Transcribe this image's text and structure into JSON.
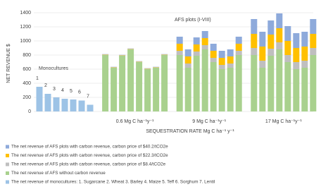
{
  "chart_data": {
    "type": "bar",
    "stacked": true,
    "y_label": "NET REVENUE $",
    "x_label": "SEQUESTRATION RATE Mg C ha⁻¹ y⁻¹",
    "annotations": [
      "Monocultures",
      "AFS plots (I-VIII)"
    ],
    "group_labels": [
      "0.6 Mg C ha⁻¹y⁻¹",
      "9 Mg C ha⁻¹y⁻¹",
      "17 Mg C ha⁻¹y⁻¹"
    ],
    "categories": [
      "1",
      "2",
      "3",
      "4",
      "5",
      "6",
      "7",
      null,
      null,
      null,
      null,
      null,
      null,
      null,
      null,
      null,
      null,
      null,
      null,
      null,
      null,
      null,
      null,
      null,
      null,
      null,
      null,
      null,
      null,
      null,
      null
    ],
    "ylim": [
      0,
      1400
    ],
    "yticks": [
      0,
      200,
      400,
      600,
      800,
      1000,
      1200,
      1400
    ],
    "grid": true,
    "series": [
      {
        "name": "The net revenue of AFS plots with carbon revenue, carbon price of $40.2/tCO2e",
        "color": "#8eaadb",
        "values": [
          null,
          null,
          null,
          null,
          null,
          null,
          null,
          5,
          5,
          5,
          5,
          5,
          5,
          5,
          5,
          100,
          100,
          100,
          100,
          100,
          100,
          100,
          100,
          210,
          210,
          200,
          210,
          210,
          210,
          210,
          210
        ]
      },
      {
        "name": "The net revenue of AFS plots with carbon revenue, carbon price of $22.3/tCO2e",
        "color": "#ffc000",
        "values": [
          null,
          null,
          null,
          null,
          null,
          null,
          null,
          5,
          5,
          5,
          5,
          5,
          5,
          5,
          5,
          100,
          100,
          100,
          100,
          100,
          100,
          100,
          100,
          200,
          200,
          200,
          200,
          200,
          200,
          200,
          200
        ]
      },
      {
        "name": "The net revenue of AFS plots with carbon revenue, carbon price of $8.4/tCO2e",
        "color": "#bfbfbf",
        "values": [
          null,
          null,
          null,
          null,
          null,
          null,
          null,
          3,
          3,
          3,
          3,
          3,
          3,
          3,
          3,
          60,
          60,
          60,
          60,
          60,
          60,
          60,
          60,
          100,
          100,
          100,
          100,
          100,
          100,
          100,
          100
        ]
      },
      {
        "name": "The net revenue of AFS without carbon revenue",
        "color": "#a9d18e",
        "values": [
          null,
          null,
          null,
          null,
          null,
          null,
          null,
          800,
          620,
          790,
          880,
          700,
          600,
          620,
          800,
          800,
          620,
          790,
          880,
          700,
          600,
          620,
          800,
          800,
          620,
          790,
          880,
          700,
          600,
          620,
          800
        ]
      },
      {
        "name": "The net revenue of monocultures: 1. Sugarcane 2. Wheat 3. Barley 4. Maize 5. Teff 6. Sorghum 7. Lentil",
        "color": "#9dc3e6",
        "values": [
          350,
          250,
          200,
          180,
          170,
          155,
          95,
          null,
          null,
          null,
          null,
          null,
          null,
          null,
          null,
          null,
          null,
          null,
          null,
          null,
          null,
          null,
          null,
          null,
          null,
          null,
          null,
          null,
          null,
          null,
          null
        ]
      }
    ]
  }
}
